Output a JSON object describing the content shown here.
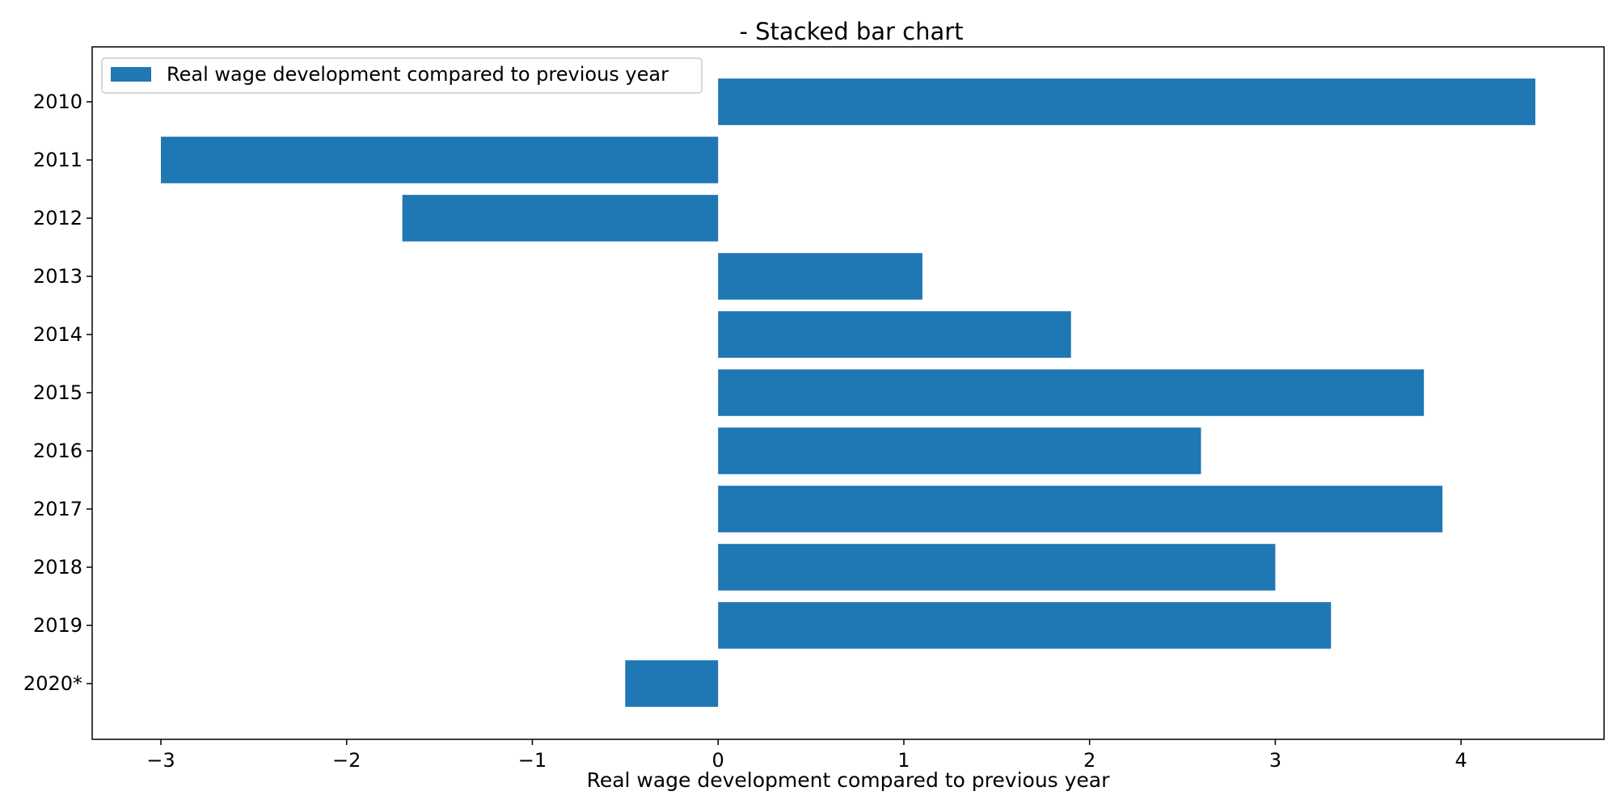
{
  "chart_data": {
    "type": "bar",
    "orientation": "horizontal",
    "title": "- Stacked bar chart",
    "xlabel": "Real wage development compared to previous year",
    "ylabel": "",
    "categories": [
      "2010",
      "2011",
      "2012",
      "2013",
      "2014",
      "2015",
      "2016",
      "2017",
      "2018",
      "2019",
      "2020*"
    ],
    "series": [
      {
        "name": "Real wage development compared to previous year",
        "color": "#1f77b4",
        "values": [
          4.4,
          -3.0,
          -1.7,
          1.1,
          1.9,
          3.8,
          2.6,
          3.9,
          3.0,
          3.3,
          -0.5
        ]
      }
    ],
    "xlim": [
      -3.37,
      4.77
    ],
    "xticks": [
      -3,
      -2,
      -1,
      0,
      1,
      2,
      3,
      4
    ],
    "xtick_labels": [
      "−3",
      "−2",
      "−1",
      "0",
      "1",
      "2",
      "3",
      "4"
    ],
    "grid": false,
    "legend_position": "upper left"
  }
}
